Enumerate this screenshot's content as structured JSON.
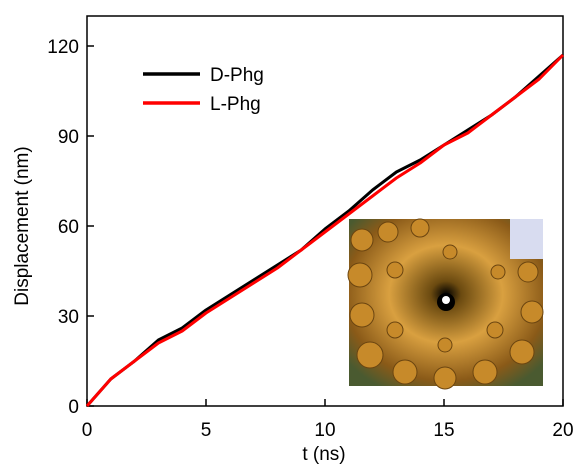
{
  "chart_data": {
    "type": "line",
    "xlabel": "t (ns)",
    "ylabel": "Displacement (nm)",
    "x": [
      0,
      1,
      2,
      3,
      4,
      5,
      6,
      7,
      8,
      9,
      10,
      11,
      12,
      13,
      14,
      15,
      16,
      17,
      18,
      19,
      20
    ],
    "series": [
      {
        "name": "D-Phg",
        "color": "#000000",
        "values": [
          0,
          9,
          15,
          22,
          26,
          32,
          37,
          42,
          47,
          52,
          59,
          65,
          72,
          78,
          82,
          87,
          92,
          97,
          103,
          110,
          117
        ]
      },
      {
        "name": "L-Phg",
        "color": "#ff0000",
        "values": [
          0,
          9,
          15,
          21,
          25,
          31,
          36,
          41,
          46,
          52,
          58,
          64,
          70,
          76,
          81,
          87,
          91,
          97,
          103,
          109,
          117
        ]
      }
    ],
    "xlim": [
      0,
      20
    ],
    "ylim": [
      0,
      130
    ],
    "xticks": [
      0,
      5,
      10,
      15,
      20
    ],
    "yticks": [
      0,
      30,
      60,
      90,
      120
    ],
    "legend": "upper-left"
  }
}
